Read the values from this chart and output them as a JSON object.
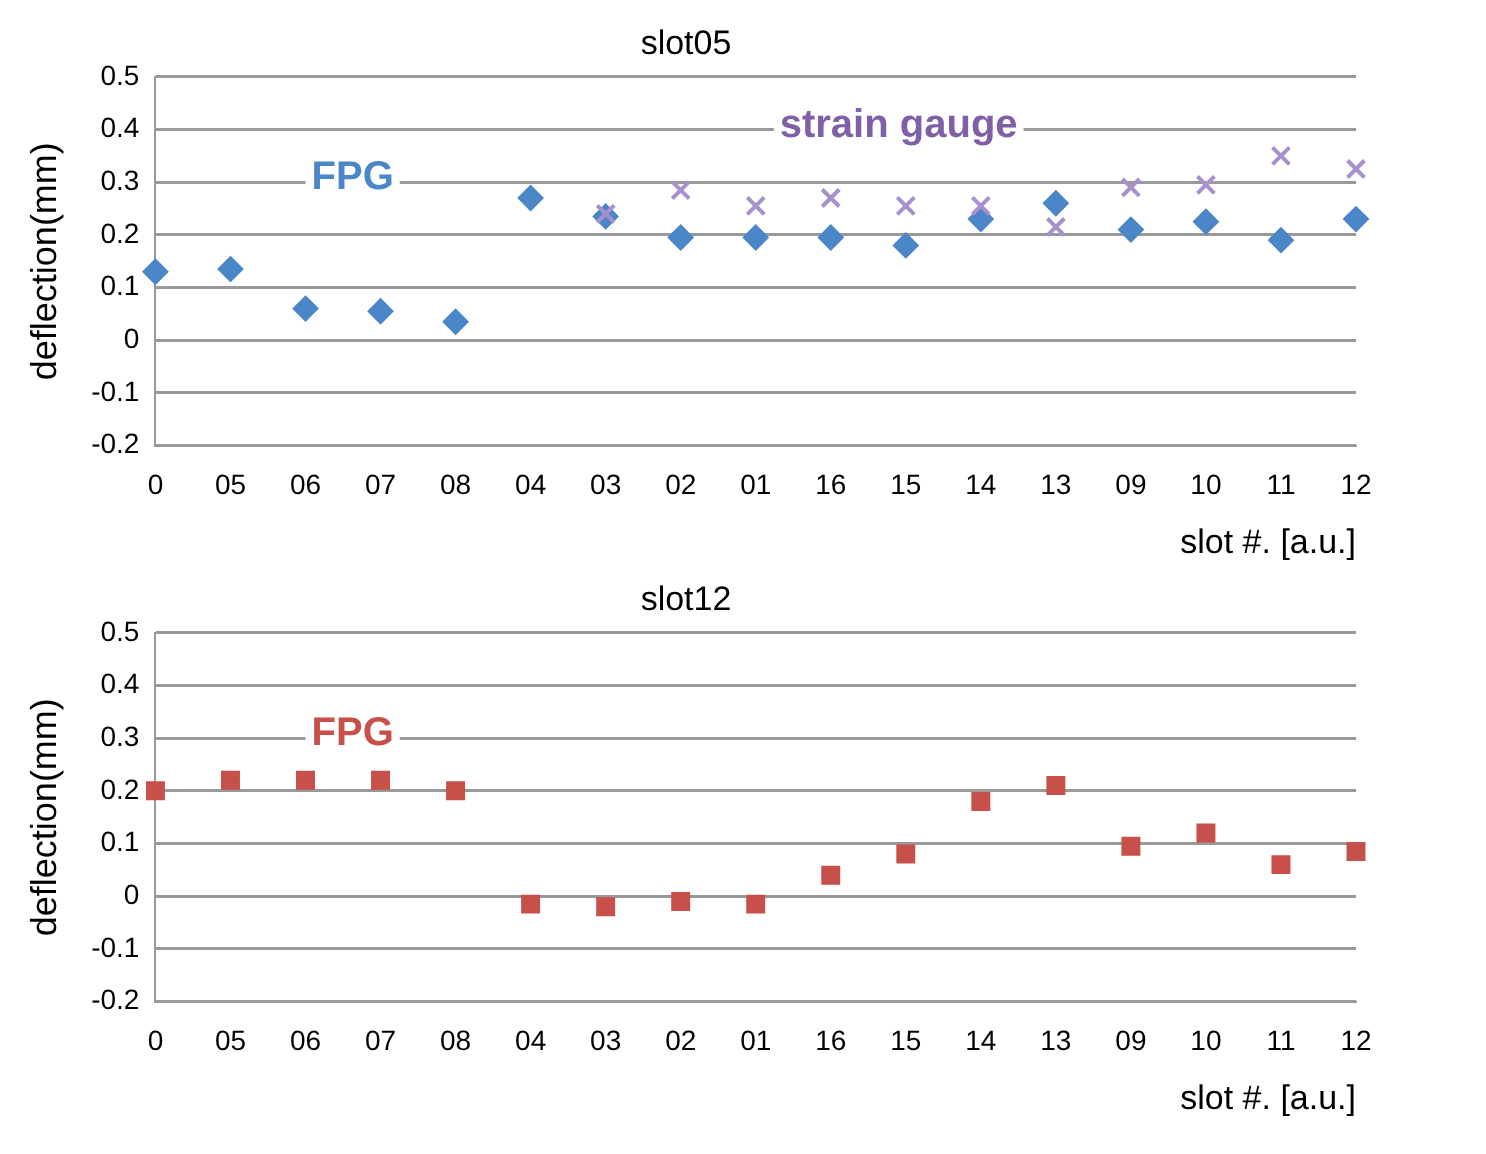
{
  "chart_data": [
    {
      "type": "scatter",
      "title": "slot05",
      "xlabel": "slot #. [a.u.]",
      "ylabel": "deflection(mm)",
      "categories": [
        "0",
        "05",
        "06",
        "07",
        "08",
        "04",
        "03",
        "02",
        "01",
        "16",
        "15",
        "14",
        "13",
        "09",
        "10",
        "11",
        "12"
      ],
      "ylim": [
        -0.2,
        0.5
      ],
      "yticks": [
        -0.2,
        -0.1,
        0,
        0.1,
        0.2,
        0.3,
        0.4,
        0.5
      ],
      "grid": "y",
      "legend": false,
      "series": [
        {
          "name": "FPG",
          "color": "#4a86c8",
          "marker": "diamond",
          "values": [
            0.13,
            0.135,
            0.06,
            0.055,
            0.035,
            0.27,
            0.235,
            0.195,
            0.195,
            0.195,
            0.18,
            0.23,
            0.26,
            0.21,
            0.225,
            0.19,
            0.23
          ]
        },
        {
          "name": "strain gauge",
          "color": "#a890cc",
          "marker": "cross",
          "values": [
            null,
            null,
            null,
            null,
            null,
            null,
            0.24,
            0.285,
            0.255,
            0.27,
            0.255,
            0.255,
            0.215,
            0.29,
            0.295,
            0.35,
            0.325
          ]
        }
      ]
    },
    {
      "type": "scatter",
      "title": "slot12",
      "xlabel": "slot #. [a.u.]",
      "ylabel": "deflection(mm)",
      "categories": [
        "0",
        "05",
        "06",
        "07",
        "08",
        "04",
        "03",
        "02",
        "01",
        "16",
        "15",
        "14",
        "13",
        "09",
        "10",
        "11",
        "12"
      ],
      "ylim": [
        -0.2,
        0.5
      ],
      "yticks": [
        -0.2,
        -0.1,
        0,
        0.1,
        0.2,
        0.3,
        0.4,
        0.5
      ],
      "grid": "y",
      "legend": false,
      "series": [
        {
          "name": "FPG",
          "color": "#c8504b",
          "marker": "square",
          "values": [
            0.2,
            0.22,
            0.22,
            0.22,
            0.2,
            -0.015,
            -0.02,
            -0.01,
            -0.015,
            0.04,
            0.08,
            0.18,
            0.21,
            0.095,
            0.12,
            0.06,
            0.085
          ]
        }
      ]
    }
  ]
}
